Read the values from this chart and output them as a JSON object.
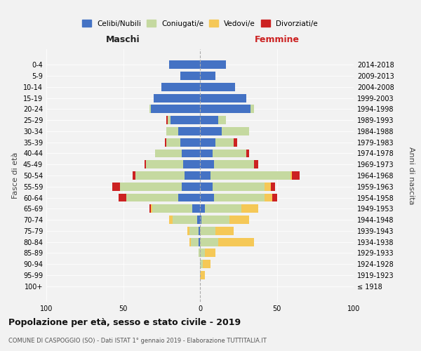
{
  "age_groups": [
    "100+",
    "95-99",
    "90-94",
    "85-89",
    "80-84",
    "75-79",
    "70-74",
    "65-69",
    "60-64",
    "55-59",
    "50-54",
    "45-49",
    "40-44",
    "35-39",
    "30-34",
    "25-29",
    "20-24",
    "15-19",
    "10-14",
    "5-9",
    "0-4"
  ],
  "birth_years": [
    "≤ 1918",
    "1919-1923",
    "1924-1928",
    "1929-1933",
    "1934-1938",
    "1939-1943",
    "1944-1948",
    "1949-1953",
    "1954-1958",
    "1959-1963",
    "1964-1968",
    "1969-1973",
    "1974-1978",
    "1979-1983",
    "1984-1988",
    "1989-1993",
    "1994-1998",
    "1999-2003",
    "2004-2008",
    "2009-2013",
    "2014-2018"
  ],
  "maschi": {
    "celibi": [
      0,
      0,
      0,
      0,
      1,
      1,
      2,
      5,
      14,
      12,
      10,
      11,
      12,
      13,
      14,
      19,
      32,
      30,
      25,
      13,
      20
    ],
    "coniugati": [
      0,
      0,
      0,
      1,
      5,
      6,
      16,
      26,
      34,
      40,
      32,
      24,
      17,
      9,
      8,
      2,
      1,
      0,
      0,
      0,
      0
    ],
    "vedovi": [
      0,
      0,
      0,
      0,
      1,
      1,
      2,
      1,
      0,
      0,
      0,
      0,
      0,
      0,
      0,
      0,
      0,
      0,
      0,
      0,
      0
    ],
    "divorziati": [
      0,
      0,
      0,
      0,
      0,
      0,
      0,
      1,
      5,
      5,
      2,
      1,
      0,
      1,
      0,
      1,
      0,
      0,
      0,
      0,
      0
    ]
  },
  "femmine": {
    "nubili": [
      0,
      0,
      0,
      0,
      0,
      0,
      1,
      3,
      9,
      8,
      7,
      9,
      8,
      10,
      14,
      12,
      33,
      30,
      23,
      10,
      17
    ],
    "coniugate": [
      0,
      0,
      2,
      3,
      12,
      10,
      18,
      24,
      33,
      34,
      52,
      26,
      22,
      12,
      18,
      5,
      2,
      0,
      0,
      0,
      0
    ],
    "vedove": [
      0,
      3,
      5,
      7,
      23,
      12,
      13,
      11,
      5,
      4,
      1,
      0,
      0,
      0,
      0,
      0,
      0,
      0,
      0,
      0,
      0
    ],
    "divorziate": [
      0,
      0,
      0,
      0,
      0,
      0,
      0,
      0,
      3,
      3,
      5,
      3,
      2,
      2,
      0,
      0,
      0,
      0,
      0,
      0,
      0
    ]
  },
  "colors": {
    "celibi_nubili": "#4472c4",
    "coniugati": "#c5d9a0",
    "vedovi": "#f5c857",
    "divorziati": "#cc2222"
  },
  "title": "Popolazione per età, sesso e stato civile - 2019",
  "subtitle": "COMUNE DI CASPOGGIO (SO) - Dati ISTAT 1° gennaio 2019 - Elaborazione TUTTITALIA.IT",
  "xlabel_left": "Maschi",
  "xlabel_right": "Femmine",
  "ylabel_left": "Fasce di età",
  "ylabel_right": "Anni di nascita",
  "xlim": 100,
  "legend_labels": [
    "Celibi/Nubili",
    "Coniugati/e",
    "Vedovi/e",
    "Divorziati/e"
  ],
  "bg_color": "#f2f2f2"
}
